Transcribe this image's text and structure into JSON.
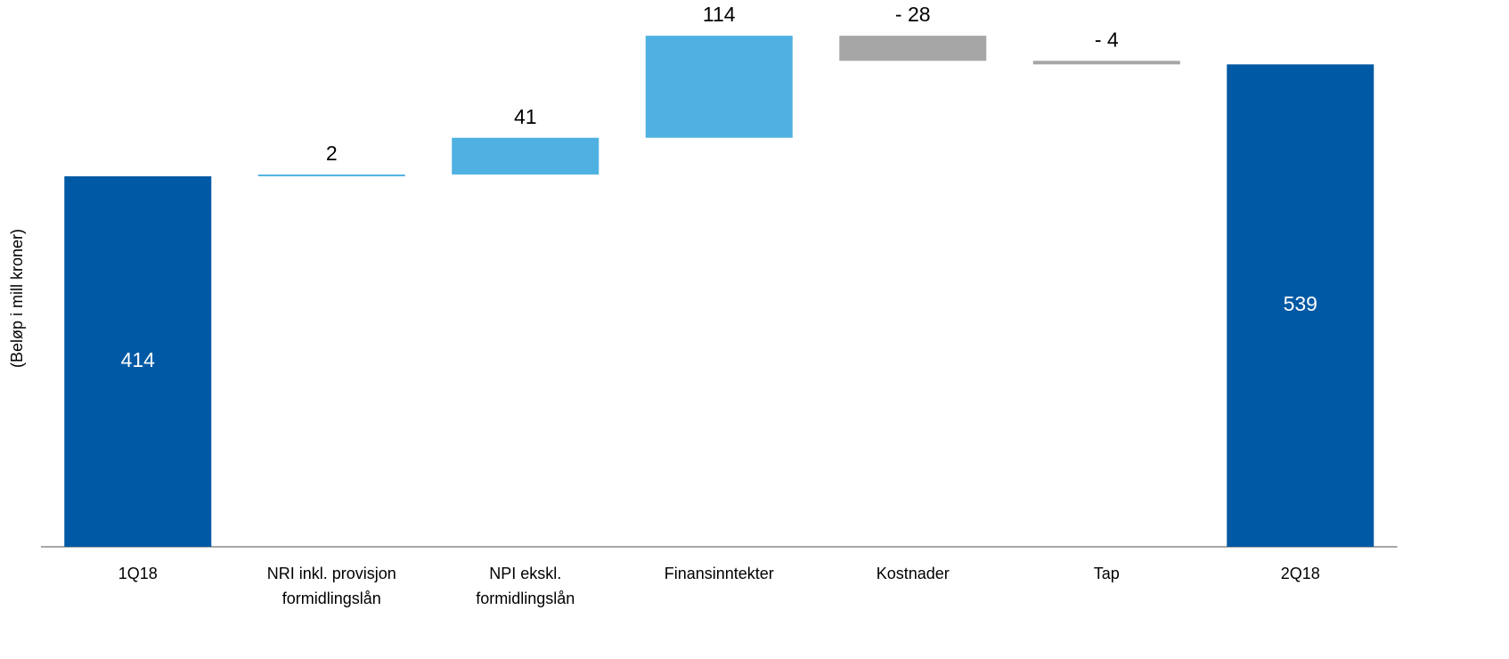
{
  "chart_data": {
    "type": "waterfall",
    "y_label": "(Beløp i mill kroner)",
    "categories": [
      "1Q18",
      "NRI inkl. provisjon formidlingslån",
      "NPI ekskl. formidlingslån",
      "Finansinntekter",
      "Kostnader",
      "Tap",
      "2Q18"
    ],
    "values": [
      414,
      2,
      41,
      114,
      -28,
      -4,
      539
    ],
    "value_labels": [
      "414",
      "2",
      "41",
      "114",
      "- 28",
      "- 4",
      "539"
    ],
    "measure": [
      "absolute",
      "relative",
      "relative",
      "relative",
      "relative",
      "relative",
      "absolute"
    ],
    "colors": {
      "total": "#0059a4",
      "increase": "#4eb1e1",
      "decrease": "#a6a6a6"
    },
    "ylim": [
      0,
      600
    ]
  }
}
